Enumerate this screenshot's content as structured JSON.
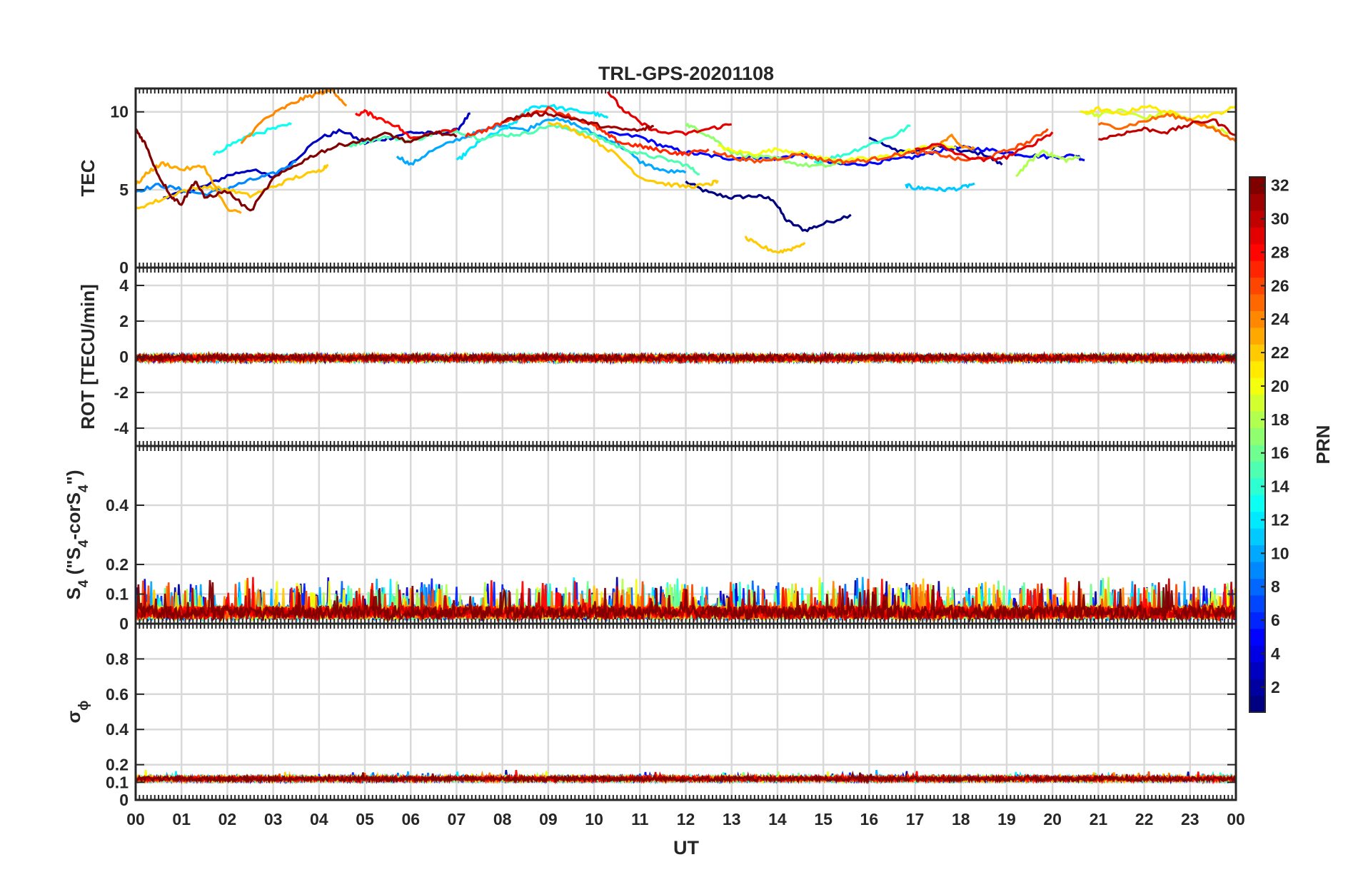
{
  "chart_data": {
    "type": "line",
    "title": "TRL-GPS-20201108",
    "xlabel": "UT",
    "x_ticks": [
      "00",
      "01",
      "02",
      "03",
      "04",
      "05",
      "06",
      "07",
      "08",
      "09",
      "10",
      "11",
      "12",
      "13",
      "14",
      "15",
      "16",
      "17",
      "18",
      "19",
      "20",
      "21",
      "22",
      "23",
      "00"
    ],
    "xlim": [
      0,
      24
    ],
    "grid": true,
    "panels": [
      {
        "ylabel": "TEC",
        "ylim": [
          0,
          11.5
        ],
        "y_ticks": [
          0,
          5,
          10
        ],
        "series": [
          {
            "prn": 1,
            "t": [
              12.0,
              12.5,
              13.0,
              13.5,
              13.9,
              14.2,
              14.6,
              15.0,
              15.6
            ],
            "v": [
              5.5,
              4.8,
              4.5,
              4.6,
              4.4,
              3.0,
              2.4,
              2.8,
              3.4
            ]
          },
          {
            "prn": 2,
            "t": [
              16.0,
              16.5,
              17.0,
              17.5,
              18.0,
              18.5,
              18.9
            ],
            "v": [
              8.4,
              7.6,
              7.4,
              7.8,
              7.5,
              7.3,
              6.6
            ]
          },
          {
            "prn": 3,
            "t": [
              0.6,
              1.0,
              1.5,
              2.0,
              2.5,
              3.0,
              3.5,
              4.0,
              4.5,
              5.0,
              5.5,
              6.0,
              6.5,
              7.0,
              7.3
            ],
            "v": [
              4.5,
              4.8,
              5.2,
              5.9,
              6.3,
              5.8,
              7.0,
              8.3,
              8.8,
              8.0,
              8.3,
              8.7,
              8.6,
              8.8,
              9.9
            ]
          },
          {
            "prn": 5,
            "t": [
              10.3,
              11.0,
              11.5,
              12.0,
              12.5,
              13.0,
              13.5,
              14.0,
              14.5,
              15.0,
              15.5,
              16.0,
              16.5,
              17.0,
              17.5,
              18.0,
              18.5,
              19.0,
              19.5,
              20.0,
              20.5,
              20.7
            ],
            "v": [
              8.6,
              8.4,
              7.8,
              7.4,
              7.2,
              7.0,
              7.1,
              7.0,
              7.3,
              6.8,
              6.6,
              6.7,
              6.9,
              7.1,
              7.5,
              7.7,
              7.6,
              7.4,
              7.2,
              7.1,
              7.2,
              6.9
            ]
          },
          {
            "prn": 9,
            "t": [
              0.0,
              0.5,
              1.0,
              1.5,
              2.0,
              2.5,
              3.0,
              3.5
            ],
            "v": [
              4.9,
              5.3,
              5.0,
              4.7,
              5.1,
              5.6,
              6.0,
              6.8
            ]
          },
          {
            "prn": 10,
            "t": [
              5.7,
              6.0,
              6.4,
              7.0,
              7.5,
              8.0,
              8.5,
              9.0,
              9.5,
              10.0,
              10.5,
              11.0,
              11.5,
              12.0
            ],
            "v": [
              7.2,
              6.6,
              7.4,
              8.2,
              8.7,
              9.2,
              8.8,
              9.6,
              9.3,
              8.6,
              8.0,
              6.8,
              6.2,
              6.1
            ]
          },
          {
            "prn": 11,
            "t": [
              16.8,
              17.0,
              17.3,
              17.6,
              18.0,
              18.3
            ],
            "v": [
              5.3,
              5.1,
              5.1,
              5.0,
              5.1,
              5.4
            ]
          },
          {
            "prn": 12,
            "t": [
              7.0,
              7.3,
              7.6,
              8.0,
              8.3,
              8.6,
              9.0,
              9.5,
              10.0,
              10.3
            ],
            "v": [
              6.8,
              7.6,
              8.3,
              8.8,
              9.4,
              10.3,
              10.4,
              10.1,
              9.9,
              9.6
            ]
          },
          {
            "prn": 13,
            "t": [
              1.7,
              2.0,
              2.5,
              3.0,
              3.4
            ],
            "v": [
              7.2,
              7.8,
              8.5,
              8.9,
              9.2
            ]
          },
          {
            "prn": 14,
            "t": [
              14.8,
              15.0,
              15.5,
              16.0,
              16.5,
              16.9
            ],
            "v": [
              6.7,
              6.9,
              7.3,
              7.9,
              8.4,
              9.1
            ]
          },
          {
            "prn": 15,
            "t": [
              4.6,
              5.0,
              5.5,
              6.0,
              6.5,
              7.0,
              7.5,
              8.0,
              8.5,
              9.0,
              9.5,
              10.0,
              10.5,
              11.0,
              11.5,
              12.0,
              12.3
            ],
            "v": [
              7.8,
              8.1,
              8.4,
              8.1,
              8.6,
              8.8,
              8.3,
              8.5,
              8.6,
              9.1,
              8.9,
              8.5,
              7.8,
              7.3,
              7.0,
              6.6,
              6.0
            ]
          },
          {
            "prn": 17,
            "t": [
              12.0,
              12.3,
              12.6,
              13.0,
              13.5,
              14.0,
              14.5,
              15.0,
              15.4
            ],
            "v": [
              9.2,
              8.8,
              8.3,
              7.4,
              7.1,
              7.0,
              6.6,
              6.5,
              6.7
            ]
          },
          {
            "prn": 18,
            "t": [
              19.2,
              19.5,
              19.8,
              20.0,
              20.3,
              20.6
            ],
            "v": [
              5.9,
              6.8,
              7.5,
              7.2,
              6.9,
              7.1
            ]
          },
          {
            "prn": 19,
            "t": [
              20.7,
              21.0,
              21.5,
              22.0,
              22.5,
              23.0,
              23.5,
              23.9
            ],
            "v": [
              10.0,
              9.8,
              10.1,
              9.6,
              9.9,
              9.5,
              9.0,
              8.6
            ]
          },
          {
            "prn": 20,
            "t": [
              12.7,
              13.0,
              13.5,
              14.0,
              14.5,
              15.0,
              15.5,
              16.0,
              16.5,
              17.0,
              17.5,
              17.9
            ],
            "v": [
              7.8,
              7.5,
              7.3,
              7.6,
              7.4,
              7.0,
              6.9,
              7.0,
              7.2,
              7.6,
              7.9,
              7.7
            ]
          },
          {
            "prn": 21,
            "t": [
              20.6,
              21.0,
              21.5,
              22.0,
              22.5,
              23.0,
              23.5,
              24.0
            ],
            "v": [
              9.9,
              10.2,
              9.8,
              10.4,
              10.0,
              9.6,
              9.8,
              10.3
            ]
          },
          {
            "prn": 22,
            "t": [
              0.0,
              0.5,
              1.0,
              1.5,
              2.0,
              2.5,
              3.0,
              3.5,
              4.0,
              4.2
            ],
            "v": [
              3.8,
              4.3,
              4.9,
              5.2,
              5.0,
              4.6,
              5.2,
              5.8,
              6.2,
              6.6
            ]
          },
          {
            "prn": 22,
            "t": [
              9.0,
              9.5,
              10.0,
              10.5,
              11.0,
              11.5,
              12.0,
              12.5,
              12.7
            ],
            "v": [
              9.4,
              8.9,
              8.2,
              7.2,
              5.8,
              5.4,
              5.2,
              5.3,
              5.6
            ]
          },
          {
            "prn": 22,
            "t": [
              13.3,
              13.6,
              14.0,
              14.3,
              14.6
            ],
            "v": [
              1.9,
              1.4,
              1.0,
              1.2,
              1.6
            ]
          },
          {
            "prn": 23,
            "t": [
              0.0,
              0.3,
              0.6,
              1.0,
              1.5,
              2.0,
              2.3
            ],
            "v": [
              5.3,
              6.2,
              6.7,
              6.3,
              6.5,
              3.7,
              3.5
            ]
          },
          {
            "prn": 24,
            "t": [
              2.3,
              2.8,
              3.2,
              3.6,
              4.0,
              4.3,
              4.6
            ],
            "v": [
              8.0,
              9.5,
              10.2,
              10.8,
              11.2,
              11.4,
              10.4
            ]
          },
          {
            "prn": 24,
            "t": [
              17.2,
              17.5,
              17.8,
              18.0,
              18.3
            ],
            "v": [
              7.5,
              7.9,
              8.4,
              7.8,
              7.6
            ]
          },
          {
            "prn": 25,
            "t": [
              21.0,
              21.5,
              22.0,
              22.5,
              23.0,
              23.5,
              24.0
            ],
            "v": [
              9.2,
              9.0,
              9.4,
              9.8,
              9.5,
              8.9,
              8.1
            ]
          },
          {
            "prn": 26,
            "t": [
              12.6,
              13.0,
              13.5,
              14.0,
              14.5,
              15.0,
              15.5,
              16.0,
              16.5,
              17.0,
              17.5,
              18.0,
              18.5,
              19.0,
              19.5,
              19.9
            ],
            "v": [
              7.5,
              7.1,
              6.8,
              7.0,
              7.3,
              6.9,
              6.8,
              6.9,
              7.2,
              7.4,
              7.3,
              6.9,
              7.0,
              7.5,
              8.1,
              8.9
            ]
          },
          {
            "prn": 27,
            "t": [
              7.2,
              7.6,
              8.0,
              8.5,
              9.0,
              9.5,
              10.0,
              10.3,
              10.6,
              11.0,
              11.3,
              11.7,
              12.0,
              12.5
            ],
            "v": [
              8.5,
              8.8,
              9.3,
              9.8,
              10.2,
              9.7,
              9.1,
              8.5,
              8.0,
              7.8,
              7.6,
              7.4,
              7.3,
              7.6
            ]
          },
          {
            "prn": 28,
            "t": [
              4.8,
              5.0,
              5.3,
              5.7,
              6.0,
              6.5,
              7.0
            ],
            "v": [
              9.8,
              10.0,
              9.6,
              9.1,
              8.3,
              8.7,
              8.9
            ]
          },
          {
            "prn": 29,
            "t": [
              10.3,
              10.6,
              11.0,
              11.4,
              12.0,
              12.5,
              13.0
            ],
            "v": [
              11.3,
              10.2,
              9.3,
              8.7,
              8.6,
              8.9,
              9.2
            ]
          },
          {
            "prn": 29,
            "t": [
              17.0,
              17.5,
              18.0,
              18.5,
              19.0,
              19.5,
              20.0
            ],
            "v": [
              7.6,
              7.9,
              7.2,
              6.9,
              7.1,
              7.8,
              8.7
            ]
          },
          {
            "prn": 30,
            "t": [
              21.0,
              21.5,
              22.0,
              22.5,
              23.0,
              23.5,
              24.0
            ],
            "v": [
              8.2,
              8.6,
              8.9,
              8.7,
              9.2,
              9.5,
              8.5
            ]
          },
          {
            "prn": 31,
            "t": [
              8.0,
              8.5,
              9.0,
              9.5,
              10.0,
              10.5,
              11.0,
              11.3
            ],
            "v": [
              9.4,
              9.8,
              9.9,
              9.6,
              9.2,
              8.9,
              8.8,
              9.1
            ]
          },
          {
            "prn": 32,
            "t": [
              0.0,
              0.2,
              0.5,
              0.8,
              1.0,
              1.3,
              1.5,
              2.0,
              2.5,
              3.0,
              3.5,
              4.0,
              4.5,
              5.0,
              5.5,
              6.0,
              6.5,
              7.0
            ],
            "v": [
              8.9,
              8.0,
              5.9,
              4.5,
              4.1,
              5.6,
              4.5,
              4.9,
              3.6,
              5.7,
              6.6,
              7.4,
              7.9,
              8.2,
              8.6,
              8.0,
              8.7,
              8.4
            ]
          }
        ]
      },
      {
        "ylabel": "ROT [TECU/min]",
        "ylim": [
          -5,
          5
        ],
        "y_ticks": [
          -4,
          -2,
          0,
          2,
          4
        ],
        "noise": {
          "baseline": 0,
          "amplitude": 0.35
        }
      },
      {
        "ylabel_main": "S",
        "ylabel_sub": "4",
        "ylabel_rest": " (\"S",
        "ylabel_sub2": "4",
        "ylabel_rest2": "-corS",
        "ylabel_sub3": "4",
        "ylabel_end": "\")",
        "ylim": [
          0,
          0.6
        ],
        "y_ticks": [
          0,
          0.1,
          0.2,
          0.4
        ],
        "noise": {
          "baseline": 0.05,
          "amplitude": 0.1
        }
      },
      {
        "ylabel_main": "σ",
        "ylabel_sub": "ϕ",
        "ylim": [
          0,
          1
        ],
        "y_ticks": [
          0,
          0.1,
          0.2,
          0.4,
          0.6,
          0.8
        ],
        "noise": {
          "baseline": 0.12,
          "amplitude": 0.04
        }
      }
    ],
    "colorbar": {
      "label": "PRN",
      "range": [
        1,
        32
      ],
      "ticks": [
        2,
        4,
        6,
        8,
        10,
        12,
        14,
        16,
        18,
        20,
        22,
        24,
        26,
        28,
        30,
        32
      ],
      "colormap": "jet"
    }
  }
}
